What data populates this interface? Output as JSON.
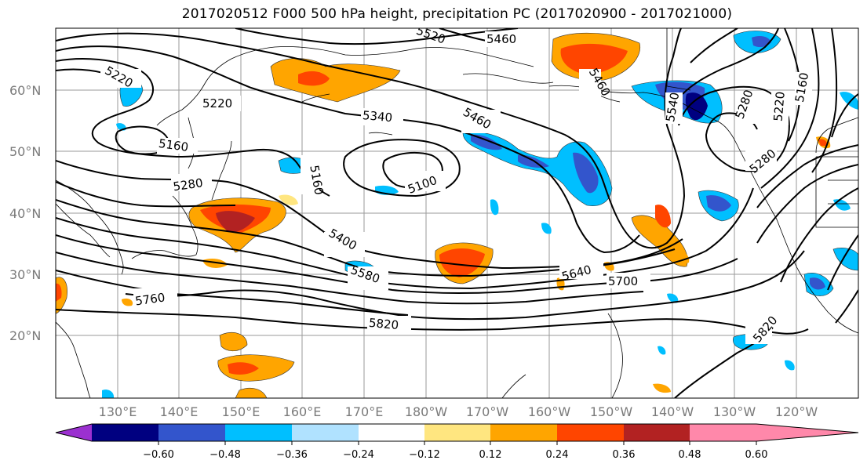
{
  "title": "2017020512 F000 500 hPa height, precipitation PC (2017020900 - 2017021000)",
  "lat_labels": [
    "20°N",
    "30°N",
    "40°N",
    "50°N",
    "60°N"
  ],
  "lon_labels": [
    "130°E",
    "140°E",
    "150°E",
    "160°E",
    "170°E",
    "180°W",
    "170°W",
    "160°W",
    "150°W",
    "140°W",
    "130°W",
    "120°W"
  ],
  "contour_labels": [
    "5460",
    "5520",
    "5220",
    "5220",
    "5340",
    "5460",
    "5160",
    "5280",
    "5160",
    "5100",
    "5400",
    "5580",
    "5640",
    "5700",
    "5760",
    "5820",
    "5820",
    "5460",
    "5280",
    "5220",
    "5160",
    "5540",
    "5280"
  ],
  "colorbar": {
    "ticks": [
      "−0.60",
      "−0.48",
      "−0.36",
      "−0.24",
      "−0.12",
      "0.12",
      "0.24",
      "0.36",
      "0.48",
      "0.60"
    ],
    "colors": [
      "#9b30d0",
      "#000080",
      "#3355cc",
      "#00bfff",
      "#b0e2ff",
      "#ffffff",
      "#ffe680",
      "#ffa500",
      "#ff4500",
      "#b22222",
      "#ff88aa"
    ]
  }
}
